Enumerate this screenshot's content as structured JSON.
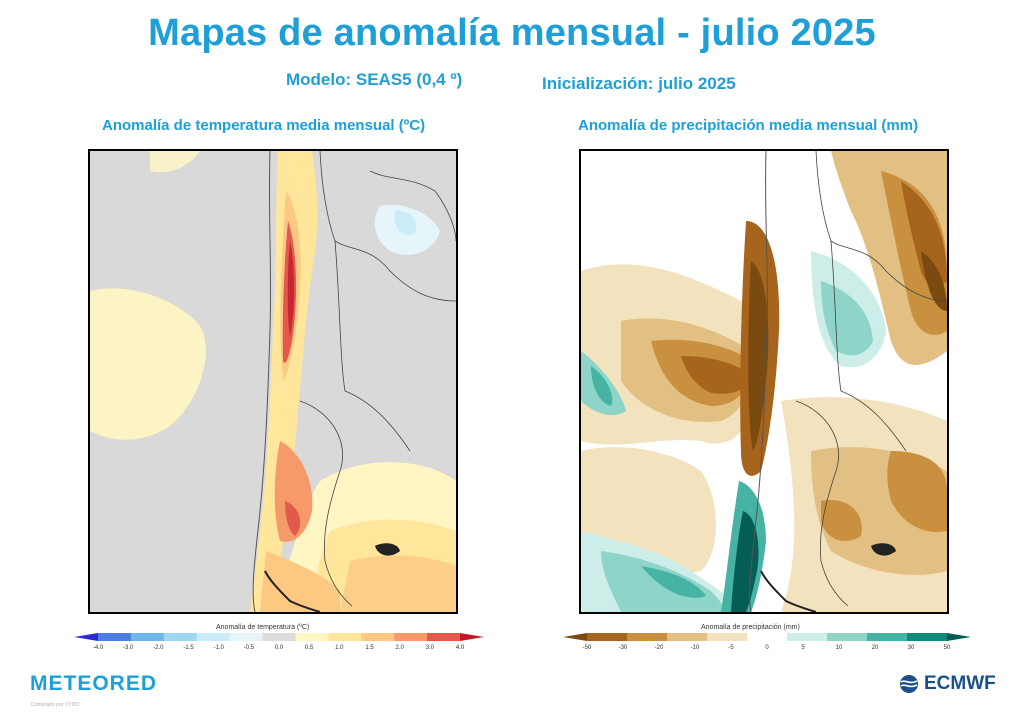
{
  "header": {
    "title": "Mapas de anomalía mensual - julio 2025",
    "model": "Modelo: SEAS5 (0,4 º)",
    "init": "Inicialización: julio 2025"
  },
  "panels": {
    "temperature": {
      "title": "Anomalía de temperatura media mensual (ºC)",
      "colorbar_title": "Anomalía de temperatura (ºC)",
      "ticks": [
        "-4.0",
        "-3.0",
        "-2.0",
        "-1.5",
        "-1.0",
        "-0.5",
        "0.0",
        "0.5",
        "1.0",
        "1.5",
        "2.0",
        "3.0",
        "4.0"
      ],
      "colors": [
        "#2b2bd6",
        "#4a7fe0",
        "#6fb6ea",
        "#9fd6f2",
        "#c9ecf8",
        "#e6f5fa",
        "#dcdcdc",
        "#fff6c4",
        "#ffe69a",
        "#fdc882",
        "#f79a6a",
        "#e25a4c",
        "#c21a2c"
      ]
    },
    "precipitation": {
      "title": "Anomalía de precipitación media mensual (mm)",
      "colorbar_title": "Anomalía de precipitación (mm)",
      "ticks": [
        "-50",
        "-30",
        "-20",
        "-10",
        "-5",
        "0",
        "5",
        "10",
        "20",
        "30",
        "50"
      ],
      "colors": [
        "#7a4a10",
        "#a7641c",
        "#c8903f",
        "#e2c083",
        "#f2e2bd",
        "#ffffff",
        "#cdeee8",
        "#8fd4c8",
        "#47b3a4",
        "#128a7c",
        "#045e55"
      ]
    }
  },
  "footer": {
    "brand_left": "METEORED",
    "credit": "Compilado por VYDO",
    "brand_right": "ECMWF"
  }
}
